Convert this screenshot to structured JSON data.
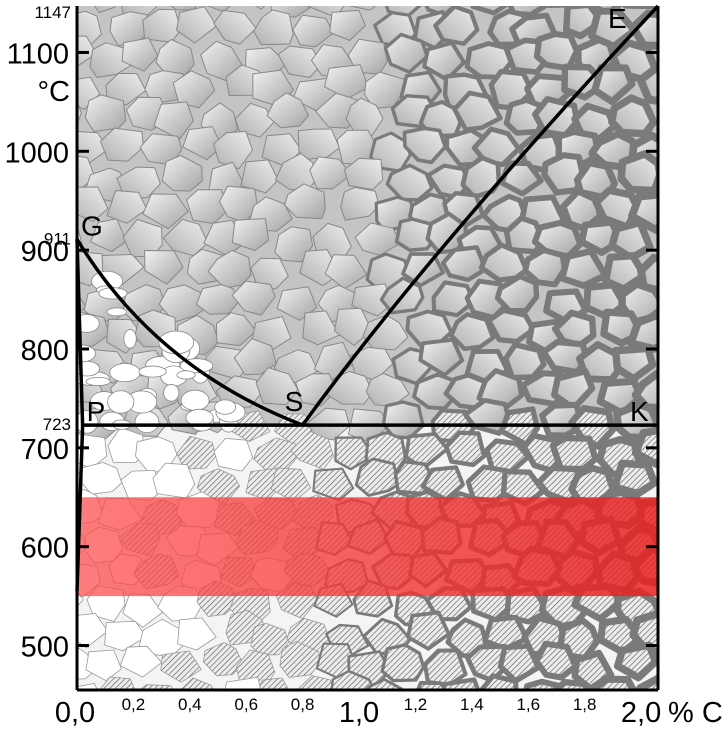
{
  "y_axis": {
    "unit": "°C",
    "ticks": [
      {
        "value": 500,
        "label": "500"
      },
      {
        "value": 600,
        "label": "600"
      },
      {
        "value": 700,
        "label": "700"
      },
      {
        "value": 800,
        "label": "800"
      },
      {
        "value": 900,
        "label": "900"
      },
      {
        "value": 1000,
        "label": "1000"
      },
      {
        "value": 1100,
        "label": "1100"
      }
    ],
    "special_ticks": [
      {
        "value": 1147,
        "label": "1147"
      },
      {
        "value": 911,
        "label": "911"
      },
      {
        "value": 723,
        "label": "723"
      }
    ],
    "range": [
      455,
      1147
    ]
  },
  "x_axis": {
    "unit": "% C",
    "range": [
      0.0,
      2.06
    ],
    "major_ticks": [
      {
        "value": 0.0,
        "label": "0,0"
      },
      {
        "value": 1.0,
        "label": "1,0"
      },
      {
        "value": 2.0,
        "label": "2,0"
      }
    ],
    "minor_ticks": [
      {
        "value": 0.2,
        "label": "0,2"
      },
      {
        "value": 0.4,
        "label": "0,4"
      },
      {
        "value": 0.6,
        "label": "0,6"
      },
      {
        "value": 0.8,
        "label": "0,8"
      },
      {
        "value": 1.2,
        "label": "1,2"
      },
      {
        "value": 1.4,
        "label": "1,4"
      },
      {
        "value": 1.6,
        "label": "1,6"
      },
      {
        "value": 1.8,
        "label": "1,8"
      }
    ]
  },
  "points": [
    {
      "name": "G",
      "label": "G",
      "c": 0.0,
      "t": 911
    },
    {
      "name": "P",
      "label": "P",
      "c": 0.02,
      "t": 723
    },
    {
      "name": "S",
      "label": "S",
      "c": 0.8,
      "t": 723
    },
    {
      "name": "K",
      "label": "K",
      "c": 2.06,
      "t": 723
    },
    {
      "name": "E",
      "label": "E",
      "c": 2.06,
      "t": 1147
    }
  ],
  "lines": {
    "GS": [
      [
        0.0,
        911
      ],
      [
        0.15,
        860
      ],
      [
        0.35,
        810
      ],
      [
        0.55,
        765
      ],
      [
        0.8,
        723
      ]
    ],
    "SE": [
      [
        0.8,
        723
      ],
      [
        1.1,
        830
      ],
      [
        1.5,
        960
      ],
      [
        2.06,
        1147
      ]
    ],
    "GP": [
      [
        0.0,
        911
      ],
      [
        0.02,
        723
      ]
    ],
    "PQ": [
      [
        0.02,
        723
      ],
      [
        0.0,
        555
      ]
    ],
    "PSK": [
      [
        0.02,
        723
      ],
      [
        2.06,
        723
      ]
    ]
  },
  "highlight_band": {
    "t_min": 550,
    "t_max": 650,
    "color": "#ff3a3a"
  },
  "colors": {
    "austenite": "#b8b8b8",
    "austenite_light": "#e8e8e8",
    "cementite_network": "#7a7a7a",
    "ferrite": "#ffffff",
    "pearlite_hatch": "#555555",
    "lines": "#000000"
  }
}
